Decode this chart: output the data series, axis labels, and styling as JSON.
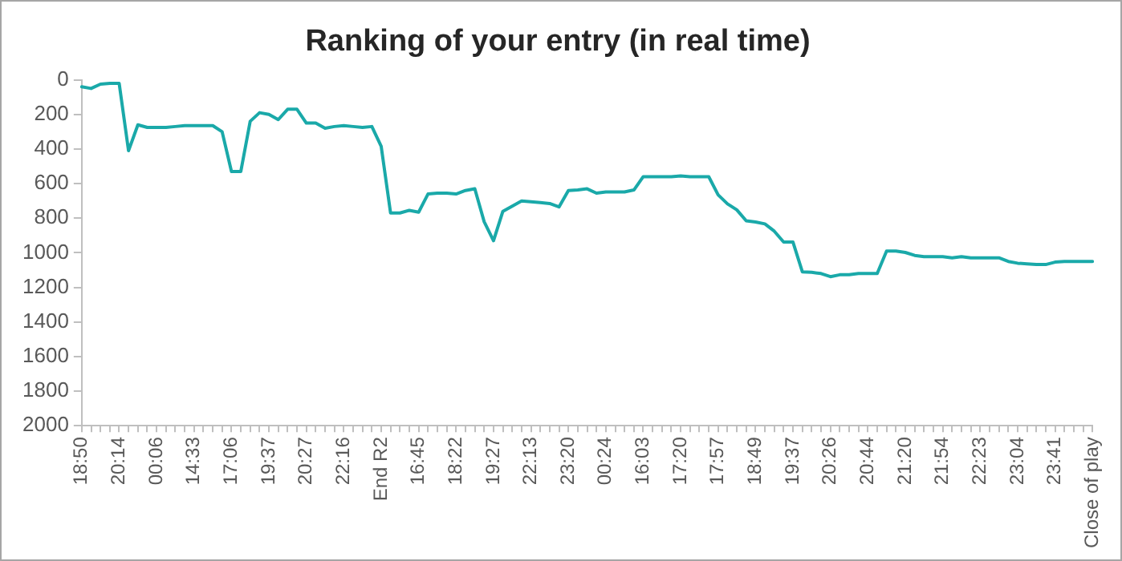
{
  "chart_data": {
    "type": "line",
    "title": "Ranking of your entry (in real time)",
    "categories": [
      "18:50",
      null,
      null,
      null,
      "20:14",
      null,
      null,
      null,
      "00:06",
      null,
      null,
      null,
      "14:33",
      null,
      null,
      null,
      "17:06",
      null,
      null,
      null,
      "19:37",
      null,
      null,
      null,
      "20:27",
      null,
      null,
      null,
      "22:16",
      null,
      null,
      null,
      "End R2",
      null,
      null,
      null,
      "16:45",
      null,
      null,
      null,
      "18:22",
      null,
      null,
      null,
      "19:27",
      null,
      null,
      null,
      "22:13",
      null,
      null,
      null,
      "23:20",
      null,
      null,
      null,
      "00:24",
      null,
      null,
      null,
      "16:03",
      null,
      null,
      null,
      "17:20",
      null,
      null,
      null,
      "17:57",
      null,
      null,
      null,
      "18:49",
      null,
      null,
      null,
      "19:37",
      null,
      null,
      null,
      "20:26",
      null,
      null,
      null,
      "20:44",
      null,
      null,
      null,
      "21:20",
      null,
      null,
      null,
      "21:54",
      null,
      null,
      null,
      "22:23",
      null,
      null,
      null,
      "23:04",
      null,
      null,
      null,
      "23:41",
      null,
      null,
      null,
      "Close of play"
    ],
    "series": [
      {
        "color": "#1aa9a9",
        "values": [
          40,
          50,
          25,
          20,
          20,
          410,
          260,
          275,
          275,
          275,
          270,
          265,
          265,
          265,
          265,
          300,
          530,
          530,
          240,
          190,
          200,
          230,
          170,
          170,
          250,
          250,
          280,
          270,
          265,
          270,
          275,
          270,
          385,
          770,
          770,
          755,
          765,
          660,
          655,
          655,
          660,
          640,
          630,
          820,
          930,
          760,
          730,
          700,
          705,
          710,
          715,
          735,
          640,
          637,
          630,
          655,
          648,
          648,
          648,
          637,
          560,
          560,
          560,
          560,
          555,
          560,
          560,
          560,
          665,
          717,
          752,
          815,
          822,
          833,
          875,
          938,
          938,
          1110,
          1113,
          1120,
          1138,
          1127,
          1127,
          1120,
          1120,
          1120,
          990,
          990,
          998,
          1015,
          1022,
          1022,
          1022,
          1029,
          1022,
          1029,
          1029,
          1029,
          1029,
          1050,
          1060,
          1064,
          1068,
          1068,
          1054,
          1050,
          1050,
          1050,
          1050
        ]
      }
    ],
    "ylim": [
      2000,
      0
    ],
    "yticks": [
      0,
      200,
      400,
      600,
      800,
      1000,
      1200,
      1400,
      1600,
      1800,
      2000
    ],
    "grid": false,
    "legend": false,
    "marker": "none",
    "line_style": "solid"
  }
}
